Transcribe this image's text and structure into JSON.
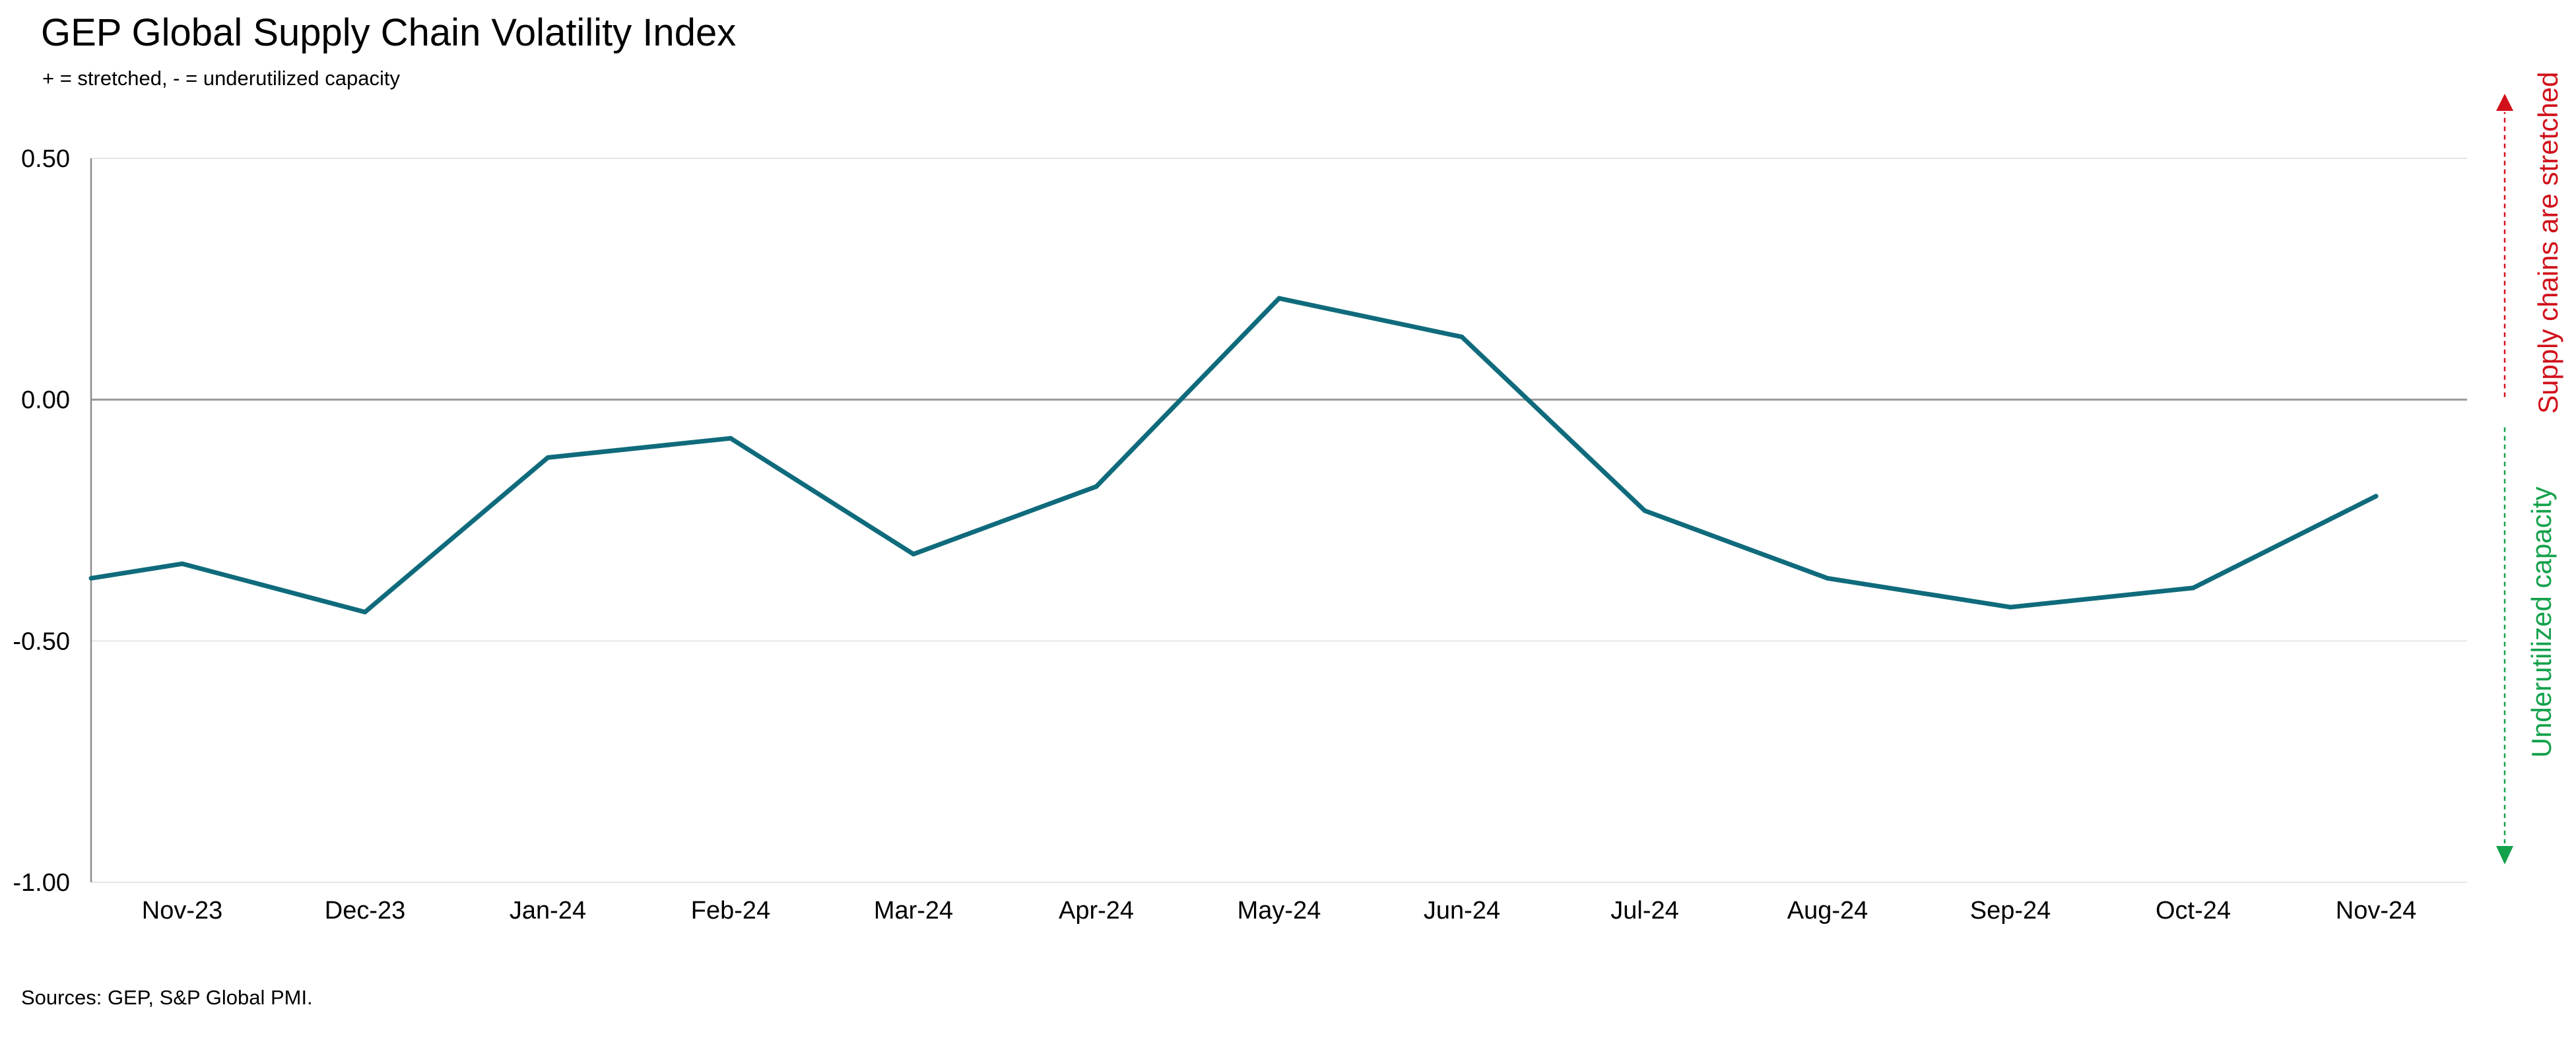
{
  "chart_data": {
    "type": "line",
    "title": "GEP Global Supply Chain Volatility Index",
    "subtitle": "+ = stretched, - = underutilized capacity",
    "source": "Sources: GEP, S&P Global PMI.",
    "categories": [
      "Nov-23",
      "Dec-23",
      "Jan-24",
      "Feb-24",
      "Mar-24",
      "Apr-24",
      "May-24",
      "Jun-24",
      "Jul-24",
      "Aug-24",
      "Sep-24",
      "Oct-24",
      "Nov-24"
    ],
    "series": [
      {
        "values": [
          -0.34,
          -0.44,
          -0.12,
          -0.08,
          -0.32,
          -0.18,
          0.21,
          0.13,
          -0.23,
          -0.37,
          -0.43,
          -0.39,
          -0.2
        ]
      }
    ],
    "series_start_value": -0.37,
    "y_ticks": [
      "0.50",
      "0.00",
      "-0.50",
      "-1.00"
    ],
    "ylim": [
      -1.0,
      0.5
    ],
    "grid": true,
    "zero_line": true,
    "annotations": {
      "top": "Supply chains are stretched",
      "bottom": "Underutilized capacity"
    },
    "colors": {
      "line": "#0f6b7c",
      "stretched": "#d0111b",
      "underutilized": "#14a14b",
      "grid": "#e6e6e6",
      "zero_line": "#9a9a9a",
      "axis": "#8c8c8c"
    }
  }
}
